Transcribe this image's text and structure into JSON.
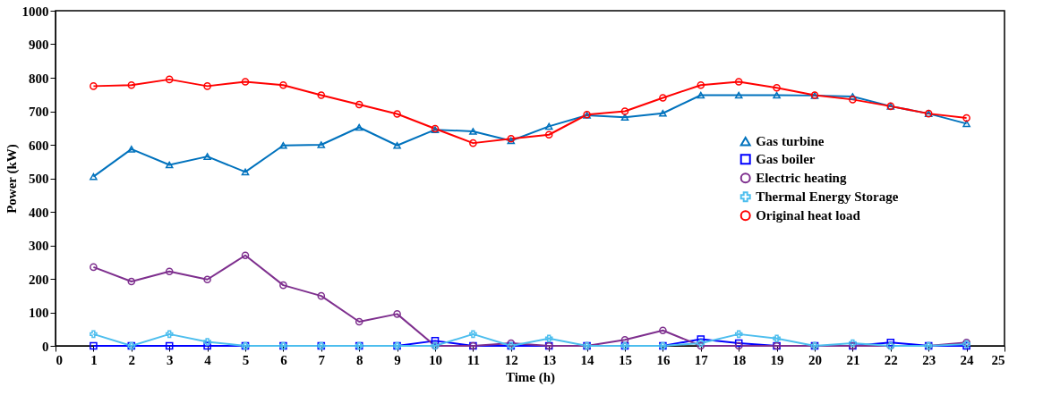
{
  "chart_data": {
    "type": "line",
    "xlabel": "Time (h)",
    "ylabel": "Power (kW)",
    "x": [
      1,
      2,
      3,
      4,
      5,
      6,
      7,
      8,
      9,
      10,
      11,
      12,
      13,
      14,
      15,
      16,
      17,
      18,
      19,
      20,
      21,
      22,
      23,
      24
    ],
    "xlim": [
      0,
      25
    ],
    "xticks": [
      0,
      1,
      2,
      3,
      4,
      5,
      6,
      7,
      8,
      9,
      10,
      11,
      12,
      13,
      14,
      15,
      16,
      17,
      18,
      19,
      20,
      21,
      22,
      23,
      24,
      25
    ],
    "ylim": [
      0,
      1000
    ],
    "yticks": [
      0,
      100,
      200,
      300,
      400,
      500,
      600,
      700,
      800,
      900,
      1000
    ],
    "grid": false,
    "legend": "right",
    "line_style": "solid",
    "series": [
      {
        "name": "Gas turbine",
        "color": "#0072bd",
        "marker": "triangle",
        "values": [
          505,
          587,
          540,
          565,
          519,
          598,
          600,
          652,
          598,
          645,
          640,
          612,
          655,
          688,
          682,
          694,
          748,
          748,
          748,
          747,
          744,
          715,
          693,
          663
        ]
      },
      {
        "name": "Gas boiler",
        "color": "#0000ff",
        "marker": "square",
        "values": [
          0,
          0,
          0,
          0,
          0,
          0,
          0,
          0,
          0,
          15,
          0,
          0,
          0,
          0,
          0,
          0,
          20,
          8,
          0,
          0,
          0,
          10,
          0,
          0
        ]
      },
      {
        "name": "Electric heating",
        "color": "#7e2f8e",
        "marker": "circle",
        "values": [
          235,
          192,
          222,
          198,
          270,
          181,
          149,
          72,
          95,
          0,
          0,
          8,
          0,
          0,
          18,
          46,
          0,
          0,
          0,
          0,
          0,
          0,
          0,
          10
        ]
      },
      {
        "name": "Thermal Energy Storage",
        "color": "#4dbeee",
        "marker": "cross",
        "values": [
          35,
          0,
          35,
          12,
          0,
          0,
          0,
          0,
          0,
          0,
          35,
          0,
          22,
          0,
          0,
          0,
          8,
          35,
          22,
          0,
          8,
          0,
          0,
          5
        ]
      },
      {
        "name": "Original heat load",
        "color": "#ff0000",
        "marker": "circle",
        "values": [
          775,
          778,
          795,
          775,
          788,
          778,
          748,
          720,
          692,
          648,
          605,
          618,
          630,
          690,
          700,
          740,
          778,
          788,
          770,
          748,
          735,
          715,
          693,
          680
        ]
      }
    ]
  }
}
